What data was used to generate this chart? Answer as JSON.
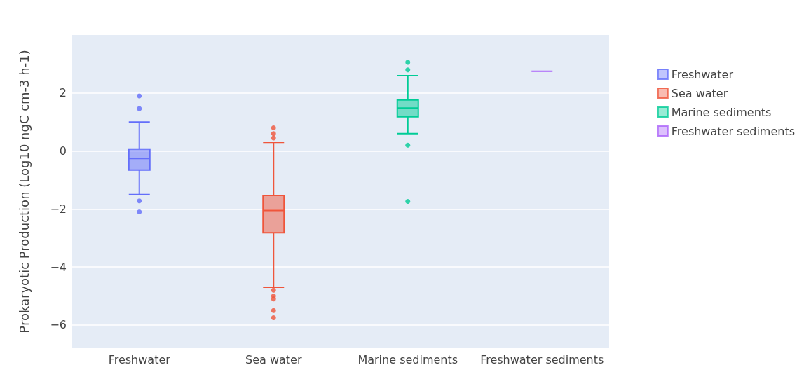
{
  "chart_data": {
    "type": "box",
    "ylabel": "Prokaryotic Production (Log10 ngC cm-3 h-1)",
    "categories": [
      "Freshwater",
      "Sea water",
      "Marine sediments",
      "Freshwater sediments"
    ],
    "series": [
      {
        "name": "Freshwater",
        "color": "#636efa",
        "boxes": [
          {
            "low": -1.5,
            "q1": -0.66,
            "median": -0.26,
            "q3": 0.07,
            "high": 1.0,
            "outliers": [
              1.9,
              1.46,
              -1.72,
              -2.1
            ]
          },
          null,
          null,
          null
        ]
      },
      {
        "name": "Sea water",
        "color": "#ef553b",
        "boxes": [
          null,
          {
            "low": -4.7,
            "q1": -2.82,
            "median": -2.05,
            "q3": -1.53,
            "high": 0.3,
            "outliers": [
              0.8,
              0.6,
              0.45,
              -4.8,
              -5.0,
              -5.1,
              -5.5,
              -5.75
            ]
          },
          null,
          null
        ]
      },
      {
        "name": "Marine sediments",
        "color": "#00cc96",
        "boxes": [
          null,
          null,
          {
            "low": 0.6,
            "q1": 1.18,
            "median": 1.48,
            "q3": 1.76,
            "high": 2.6,
            "outliers": [
              3.06,
              2.8,
              0.2,
              -1.74
            ]
          },
          null
        ]
      },
      {
        "name": "Freshwater sediments",
        "color": "#ab63fa",
        "boxes": [
          null,
          null,
          null,
          {
            "low": 2.75,
            "q1": 2.75,
            "median": 2.75,
            "q3": 2.75,
            "high": 2.75
          }
        ]
      }
    ],
    "ylim": [
      -6.8,
      4
    ],
    "yticks": [
      -6,
      -4,
      -2,
      0,
      2
    ],
    "grid": "y",
    "legend": "top right"
  }
}
